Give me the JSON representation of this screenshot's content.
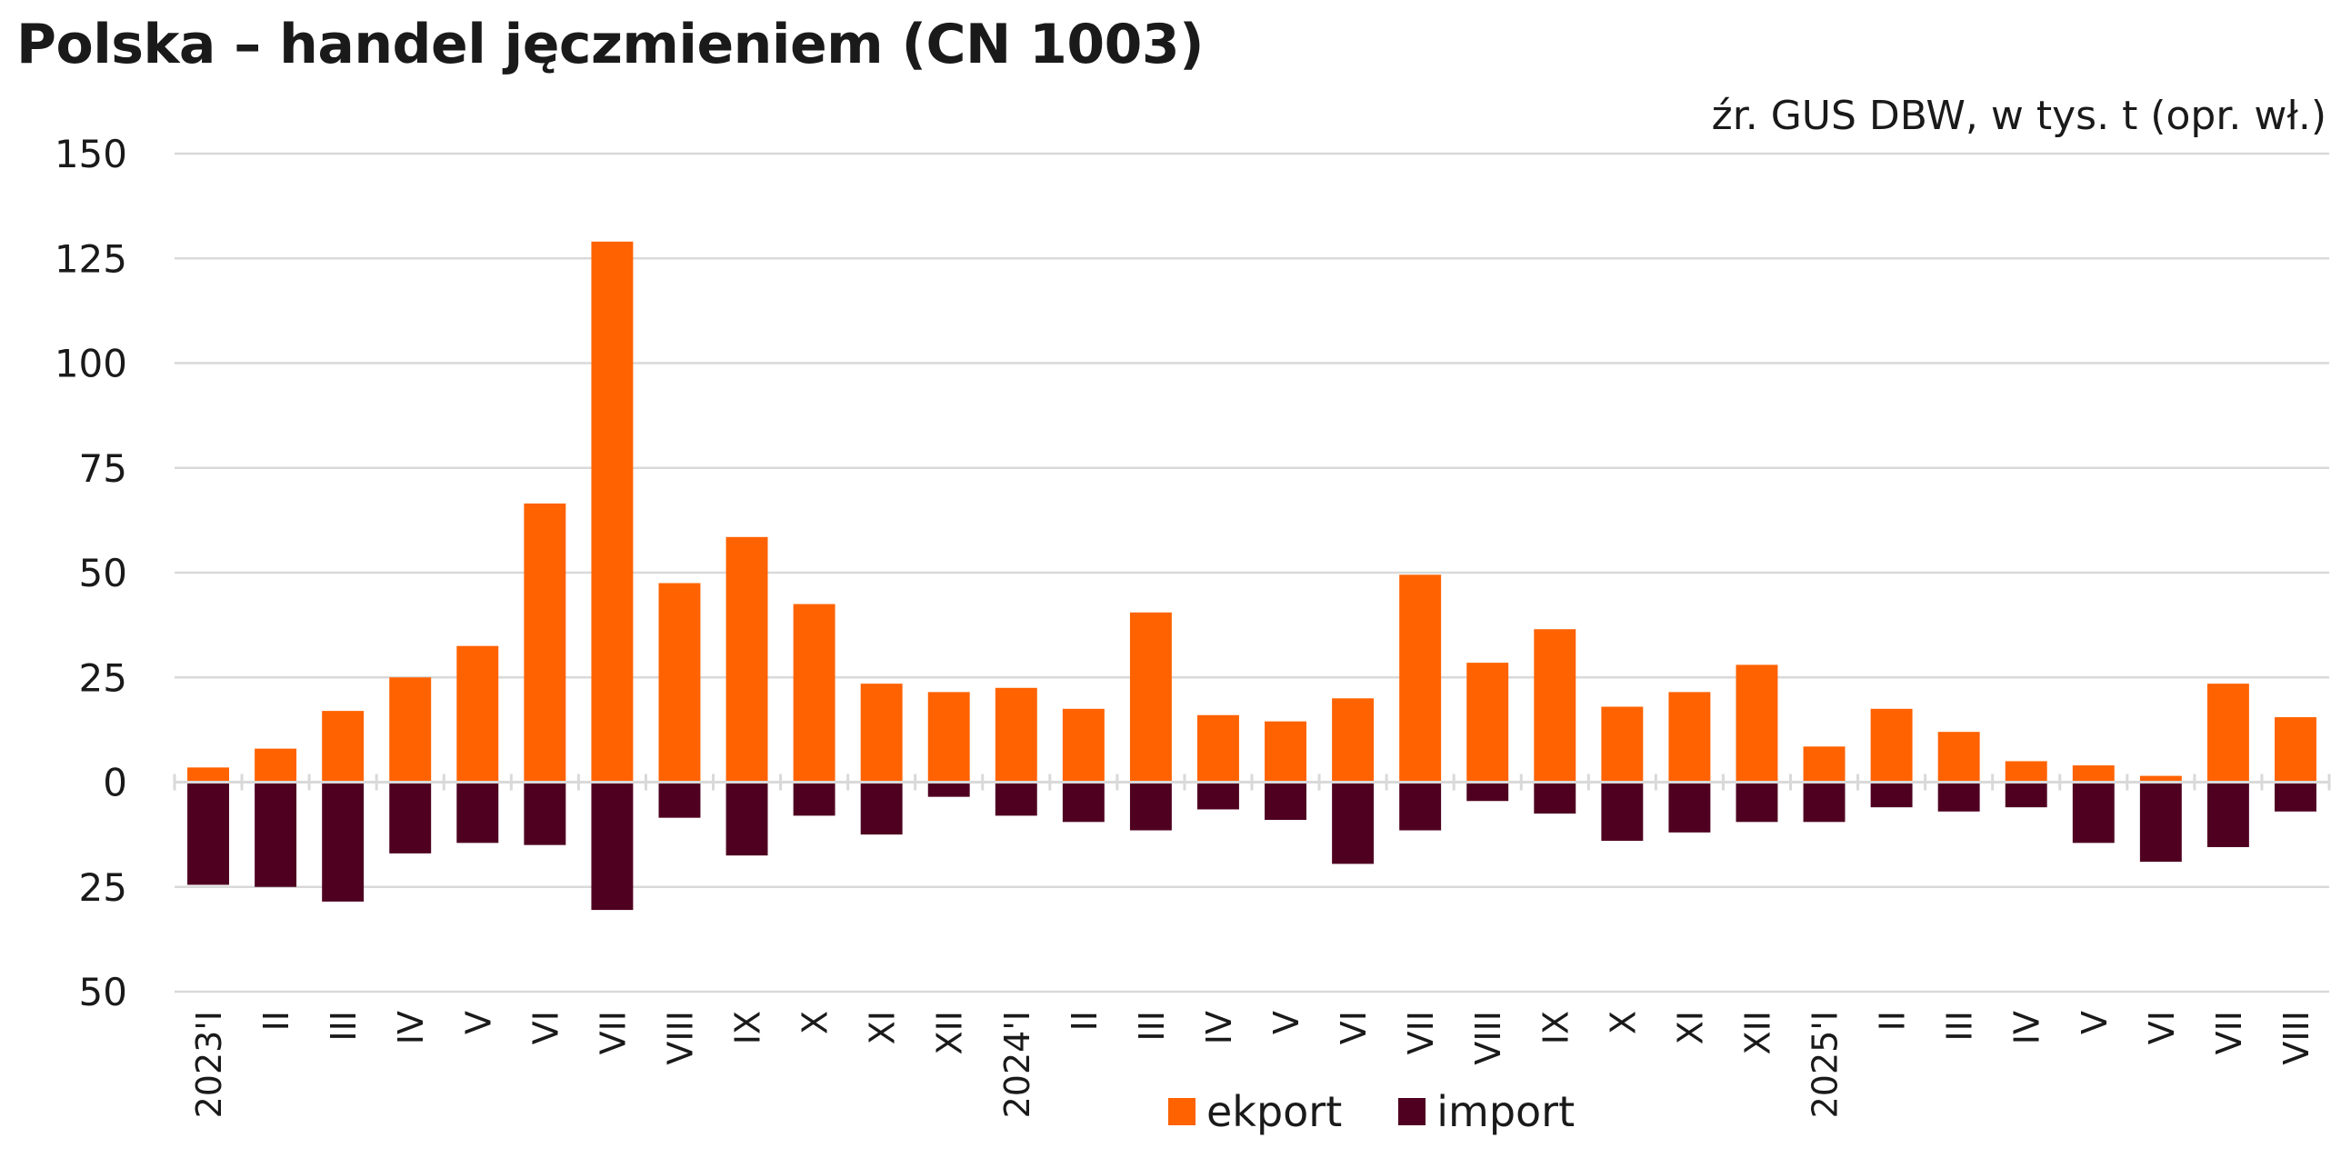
{
  "title": "Polska – handel jęczmieniem (CN 1003)",
  "source": "źr. GUS DBW, w tys. t (opr. wł.)",
  "colors": {
    "export": "#ff6200",
    "import": "#4f0020",
    "grid": "#d9d9d9"
  },
  "legend": {
    "export_label": "ekport",
    "import_label": "import"
  },
  "chart_data": {
    "type": "bar",
    "title": "Polska – handel jęczmieniem (CN 1003)",
    "xlabel": "",
    "ylabel": "",
    "ylim": [
      -50,
      150
    ],
    "yticks": [
      150,
      125,
      100,
      75,
      50,
      25,
      0,
      -25,
      -50
    ],
    "ytick_labels": [
      "150",
      "125",
      "100",
      "75",
      "50",
      "25",
      "0",
      "25",
      "50"
    ],
    "grid": true,
    "legend_position": "bottom",
    "categories": [
      "2023'I",
      "II",
      "III",
      "IV",
      "V",
      "VI",
      "VII",
      "VIII",
      "IX",
      "X",
      "XI",
      "XII",
      "2024'I",
      "II",
      "III",
      "IV",
      "V",
      "VI",
      "VII",
      "VIII",
      "IX",
      "X",
      "XI",
      "XII",
      "2025'I",
      "II",
      "III",
      "IV",
      "V",
      "VI",
      "VII",
      "VIII"
    ],
    "series": [
      {
        "name": "ekport",
        "values": [
          3.5,
          8,
          17,
          25,
          32.5,
          66.5,
          129,
          47.5,
          58.5,
          42.5,
          23.5,
          21.5,
          22.5,
          17.5,
          40.5,
          16,
          14.5,
          20,
          49.5,
          28.5,
          36.5,
          18,
          21.5,
          28,
          8.5,
          17.5,
          12,
          5,
          4,
          1.5,
          23.5,
          15.5
        ]
      },
      {
        "name": "import",
        "values": [
          -24.5,
          -25,
          -28.5,
          -17,
          -14.5,
          -15,
          -30.5,
          -8.5,
          -17.5,
          -8,
          -12.5,
          -3.5,
          -8,
          -9.5,
          -11.5,
          -6.5,
          -9,
          -19.5,
          -11.5,
          -4.5,
          -7.5,
          -14,
          -12,
          -9.5,
          -9.5,
          -6,
          -7,
          -6,
          -14.5,
          -19,
          -15.5,
          -7
        ]
      }
    ]
  }
}
